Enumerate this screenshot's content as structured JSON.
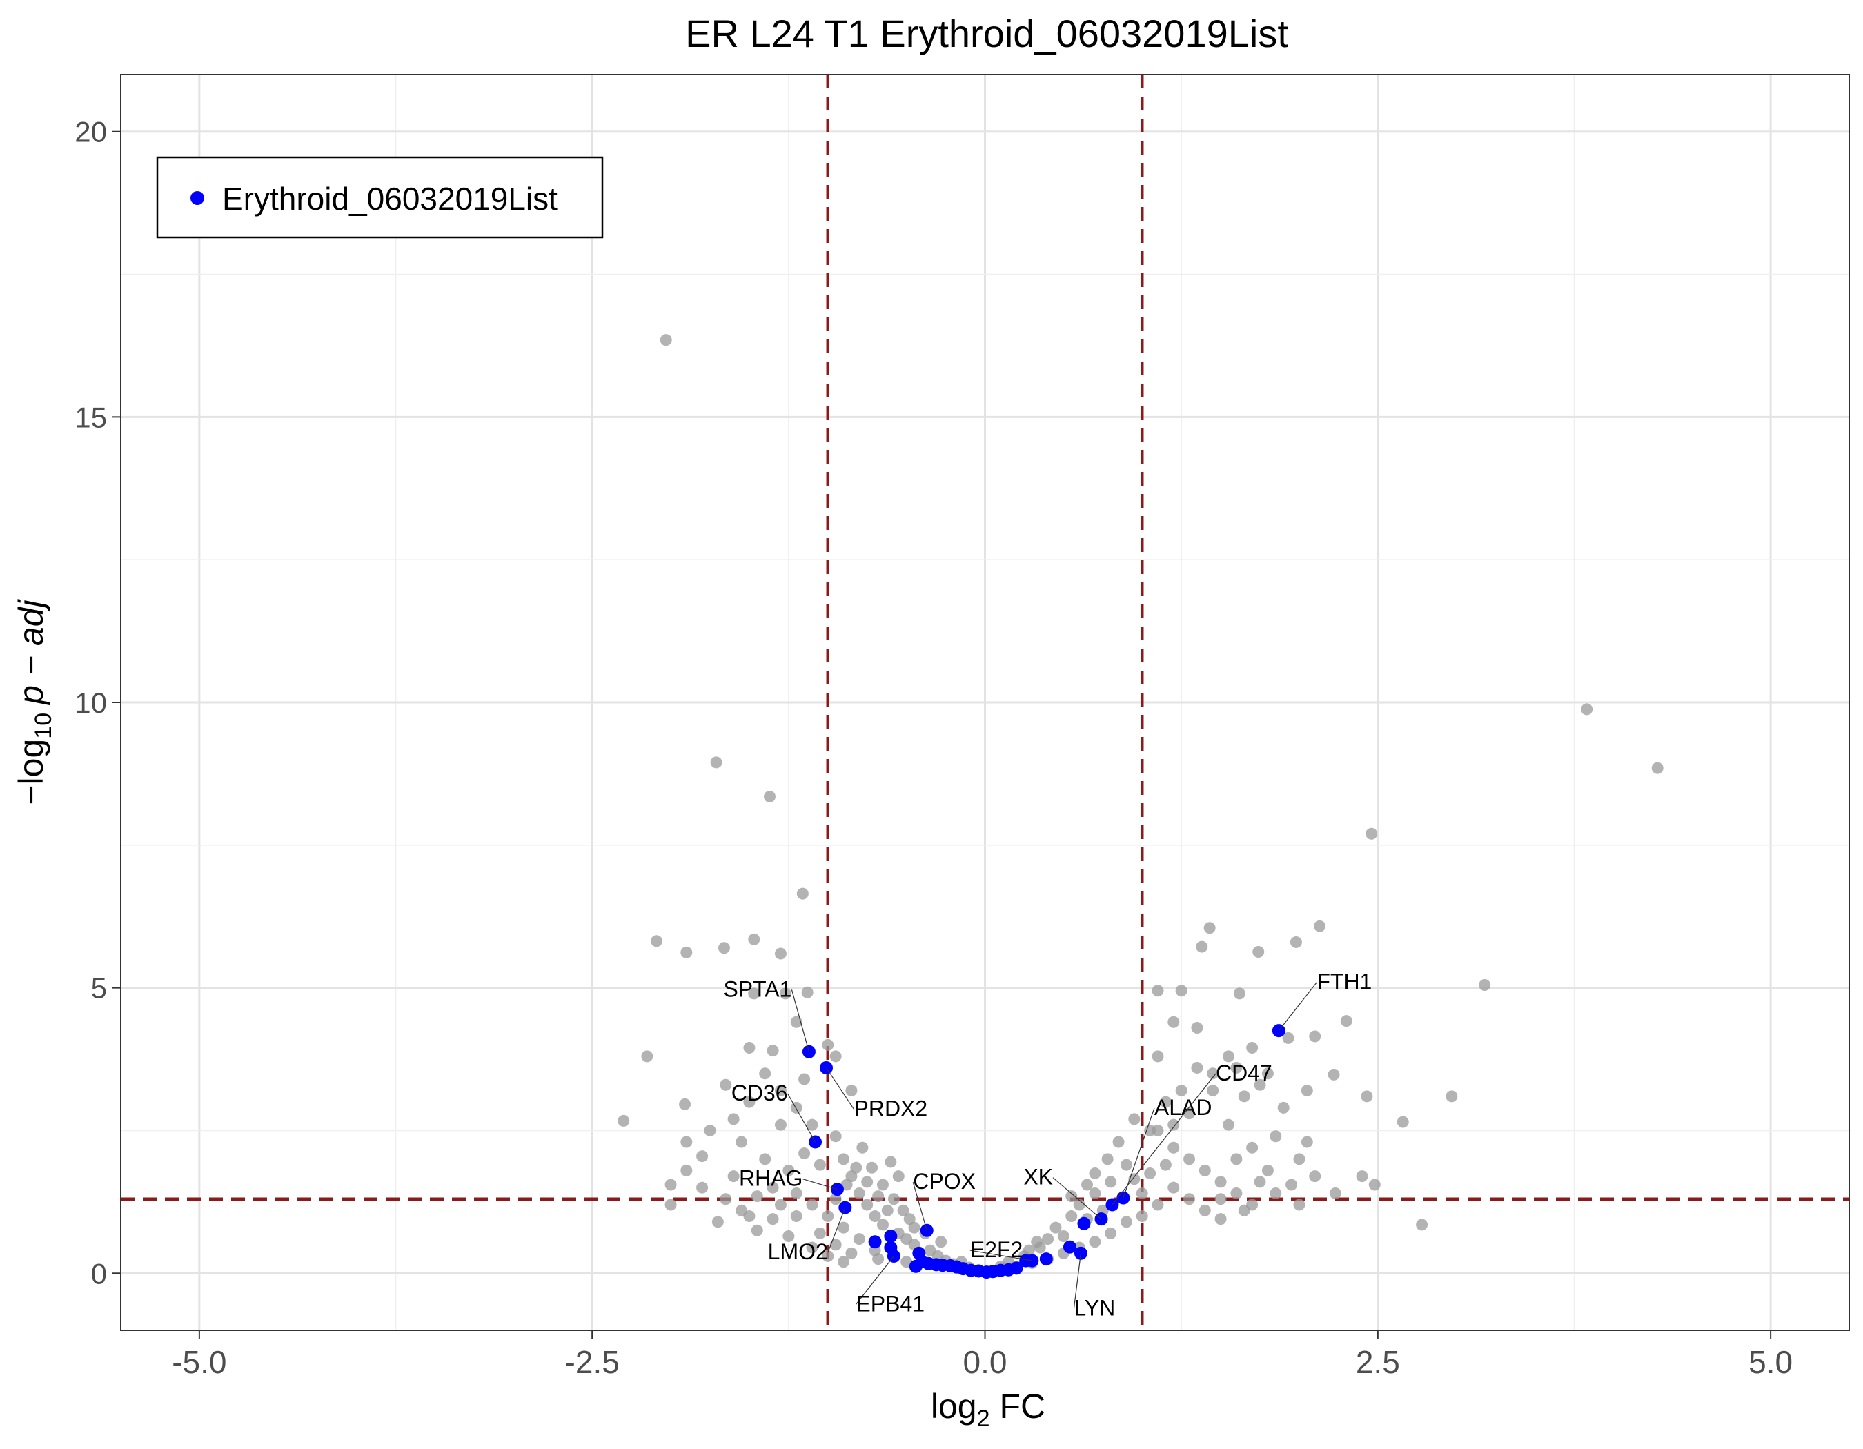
{
  "chart_data": {
    "type": "scatter",
    "title": "ER L24 T1 Erythroid_06032019List",
    "xlabel_base": "log",
    "xlabel_sub": "2",
    "xlabel_rest": " FC",
    "ylabel_pre": "−log",
    "ylabel_sub": "10",
    "ylabel_rest": "p − adj",
    "xlim": [
      -5.5,
      5.5
    ],
    "ylim": [
      -1.0,
      21.0
    ],
    "x_ticks": [
      -5.0,
      -2.5,
      0.0,
      2.5,
      5.0
    ],
    "x_tick_labels": [
      "-5.0",
      "-2.5",
      "0.0",
      "2.5",
      "5.0"
    ],
    "y_ticks": [
      0,
      5,
      10,
      15,
      20
    ],
    "y_tick_labels": [
      "0",
      "5",
      "10",
      "15",
      "20"
    ],
    "grid": true,
    "thresholds": {
      "vertical": [
        -1.0,
        1.0
      ],
      "horizontal": 1.3,
      "color": "#8B1A1A"
    },
    "legend": {
      "position": "top-left",
      "label": "Erythroid_06032019List",
      "color": "#0000ff"
    },
    "background_color": "#999999",
    "highlight_color": "#0000ff",
    "highlighted": [
      {
        "gene": "FTH1",
        "x": 1.87,
        "y": 4.25,
        "label": true
      },
      {
        "gene": "SPTA1",
        "x": -1.12,
        "y": 3.88,
        "label": true
      },
      {
        "gene": "PRDX2",
        "x": -1.01,
        "y": 3.6,
        "label": true
      },
      {
        "gene": "CD36",
        "x": -1.08,
        "y": 2.3,
        "label": true
      },
      {
        "gene": "RHAG",
        "x": -0.94,
        "y": 1.47,
        "label": true
      },
      {
        "gene": "LMO2",
        "x": -0.89,
        "y": 1.15,
        "label": true
      },
      {
        "gene": "CPOX",
        "x": -0.37,
        "y": 0.75,
        "label": true
      },
      {
        "gene": "EPB41",
        "x": -0.58,
        "y": 0.3,
        "label": true
      },
      {
        "gene": "E2F2",
        "x": 0.3,
        "y": 0.22,
        "label": true
      },
      {
        "gene": "XK",
        "x": 0.74,
        "y": 0.95,
        "label": true
      },
      {
        "gene": "LYN",
        "x": 0.61,
        "y": 0.35,
        "label": true
      },
      {
        "gene": "ALAD",
        "x": 0.88,
        "y": 1.32,
        "label": true
      },
      {
        "gene": "CD47",
        "x": 0.81,
        "y": 1.2,
        "label": true
      },
      {
        "gene": "",
        "x": 0.63,
        "y": 0.87,
        "label": false
      },
      {
        "gene": "",
        "x": 0.54,
        "y": 0.46,
        "label": false
      },
      {
        "gene": "",
        "x": 0.39,
        "y": 0.25,
        "label": false
      },
      {
        "gene": "",
        "x": 0.26,
        "y": 0.22,
        "label": false
      },
      {
        "gene": "",
        "x": 0.2,
        "y": 0.09,
        "label": false
      },
      {
        "gene": "",
        "x": 0.15,
        "y": 0.06,
        "label": false
      },
      {
        "gene": "",
        "x": 0.1,
        "y": 0.05,
        "label": false
      },
      {
        "gene": "",
        "x": 0.05,
        "y": 0.03,
        "label": false
      },
      {
        "gene": "",
        "x": 0.01,
        "y": 0.02,
        "label": false
      },
      {
        "gene": "",
        "x": -0.04,
        "y": 0.04,
        "label": false
      },
      {
        "gene": "",
        "x": -0.09,
        "y": 0.05,
        "label": false
      },
      {
        "gene": "",
        "x": -0.14,
        "y": 0.08,
        "label": false
      },
      {
        "gene": "",
        "x": -0.18,
        "y": 0.11,
        "label": false
      },
      {
        "gene": "",
        "x": -0.22,
        "y": 0.13,
        "label": false
      },
      {
        "gene": "",
        "x": -0.27,
        "y": 0.14,
        "label": false
      },
      {
        "gene": "",
        "x": -0.31,
        "y": 0.15,
        "label": false
      },
      {
        "gene": "",
        "x": -0.36,
        "y": 0.17,
        "label": false
      },
      {
        "gene": "",
        "x": -0.4,
        "y": 0.2,
        "label": false
      },
      {
        "gene": "",
        "x": -0.42,
        "y": 0.35,
        "label": false
      },
      {
        "gene": "",
        "x": -0.44,
        "y": 0.12,
        "label": false
      },
      {
        "gene": "",
        "x": -0.6,
        "y": 0.45,
        "label": false
      },
      {
        "gene": "",
        "x": -0.6,
        "y": 0.65,
        "label": false
      },
      {
        "gene": "",
        "x": -0.7,
        "y": 0.55,
        "label": false
      }
    ],
    "background_points": [
      {
        "x": -2.03,
        "y": 16.35
      },
      {
        "x": -1.71,
        "y": 8.95
      },
      {
        "x": -1.37,
        "y": 8.35
      },
      {
        "x": 3.83,
        "y": 9.88
      },
      {
        "x": 4.28,
        "y": 8.85
      },
      {
        "x": 2.46,
        "y": 7.7
      },
      {
        "x": -1.16,
        "y": 6.65
      },
      {
        "x": -2.09,
        "y": 5.82
      },
      {
        "x": -1.9,
        "y": 5.62
      },
      {
        "x": -1.66,
        "y": 5.7
      },
      {
        "x": -1.47,
        "y": 5.85
      },
      {
        "x": -1.3,
        "y": 5.6
      },
      {
        "x": 1.43,
        "y": 6.05
      },
      {
        "x": 2.13,
        "y": 6.08
      },
      {
        "x": 1.38,
        "y": 5.72
      },
      {
        "x": 1.74,
        "y": 5.63
      },
      {
        "x": 1.98,
        "y": 5.8
      },
      {
        "x": 3.18,
        "y": 5.05
      },
      {
        "x": 1.1,
        "y": 4.95
      },
      {
        "x": 1.25,
        "y": 4.95
      },
      {
        "x": 1.62,
        "y": 4.9
      },
      {
        "x": 2.3,
        "y": 4.42
      },
      {
        "x": 2.1,
        "y": 4.15
      },
      {
        "x": -1.27,
        "y": 4.9
      },
      {
        "x": -1.47,
        "y": 4.9
      },
      {
        "x": -1.13,
        "y": 4.92
      },
      {
        "x": -2.3,
        "y": 2.67
      },
      {
        "x": -2.15,
        "y": 3.8
      },
      {
        "x": -1.91,
        "y": 2.96
      },
      {
        "x": 2.43,
        "y": 3.1
      },
      {
        "x": 2.97,
        "y": 3.1
      },
      {
        "x": 2.66,
        "y": 2.65
      },
      {
        "x": 2.48,
        "y": 1.55
      },
      {
        "x": 2.78,
        "y": 0.85
      },
      {
        "x": 2.23,
        "y": 1.4
      },
      {
        "x": 2.4,
        "y": 1.7
      },
      {
        "x": 1.93,
        "y": 4.12
      },
      {
        "x": 1.8,
        "y": 3.5
      },
      {
        "x": 1.7,
        "y": 3.95
      },
      {
        "x": 1.55,
        "y": 3.8
      },
      {
        "x": 1.45,
        "y": 3.2
      },
      {
        "x": 1.35,
        "y": 4.3
      },
      {
        "x": 1.2,
        "y": 4.4
      },
      {
        "x": 2.22,
        "y": 3.48
      },
      {
        "x": 2.05,
        "y": 3.2
      },
      {
        "x": -1.35,
        "y": 3.9
      },
      {
        "x": -1.5,
        "y": 3.95
      },
      {
        "x": -1.65,
        "y": 3.3
      },
      {
        "x": -1.9,
        "y": 2.3
      },
      {
        "x": -1.2,
        "y": 4.4
      },
      {
        "x": -0.95,
        "y": 3.8
      },
      {
        "x": -0.85,
        "y": 3.2
      },
      {
        "x": -1.0,
        "y": 4.0
      },
      {
        "x": 2.0,
        "y": 2.0
      },
      {
        "x": 2.1,
        "y": 1.7
      },
      {
        "x": 1.95,
        "y": 1.55
      },
      {
        "x": 1.85,
        "y": 1.4
      },
      {
        "x": 1.65,
        "y": 1.1
      },
      {
        "x": 1.5,
        "y": 0.95
      },
      {
        "x": -1.9,
        "y": 1.8
      },
      {
        "x": -2.0,
        "y": 1.55
      },
      {
        "x": -1.8,
        "y": 1.5
      },
      {
        "x": -1.65,
        "y": 1.3
      },
      {
        "x": -1.5,
        "y": 1.0
      },
      {
        "x": -1.45,
        "y": 0.75
      },
      {
        "x": -1.7,
        "y": 0.9
      },
      {
        "x": -1.55,
        "y": 2.3
      },
      {
        "x": -1.3,
        "y": 2.6
      },
      {
        "x": -1.4,
        "y": 2.0
      },
      {
        "x": -1.25,
        "y": 1.8
      },
      {
        "x": -1.15,
        "y": 2.1
      },
      {
        "x": -1.1,
        "y": 2.6
      },
      {
        "x": -1.05,
        "y": 1.9
      },
      {
        "x": -0.95,
        "y": 2.4
      },
      {
        "x": -0.9,
        "y": 2.0
      },
      {
        "x": -0.85,
        "y": 1.7
      },
      {
        "x": -0.8,
        "y": 1.4
      },
      {
        "x": -0.75,
        "y": 1.2
      },
      {
        "x": -0.7,
        "y": 1.0
      },
      {
        "x": -0.65,
        "y": 0.85
      },
      {
        "x": -0.55,
        "y": 0.7
      },
      {
        "x": -0.5,
        "y": 0.6
      },
      {
        "x": -0.45,
        "y": 0.5
      },
      {
        "x": -0.35,
        "y": 0.4
      },
      {
        "x": -0.3,
        "y": 0.3
      },
      {
        "x": -0.25,
        "y": 0.22
      },
      {
        "x": -0.2,
        "y": 0.16
      },
      {
        "x": -1.2,
        "y": 1.4
      },
      {
        "x": -1.1,
        "y": 1.2
      },
      {
        "x": -1.0,
        "y": 1.0
      },
      {
        "x": -0.9,
        "y": 0.8
      },
      {
        "x": -0.8,
        "y": 0.6
      },
      {
        "x": -0.7,
        "y": 0.4
      },
      {
        "x": -1.3,
        "y": 1.2
      },
      {
        "x": -1.35,
        "y": 1.5
      },
      {
        "x": -1.2,
        "y": 1.0
      },
      {
        "x": -1.05,
        "y": 0.7
      },
      {
        "x": -0.95,
        "y": 0.5
      },
      {
        "x": -0.85,
        "y": 0.35
      },
      {
        "x": -0.78,
        "y": 2.2
      },
      {
        "x": -0.72,
        "y": 1.85
      },
      {
        "x": -0.65,
        "y": 1.55
      },
      {
        "x": -0.58,
        "y": 1.3
      },
      {
        "x": -0.52,
        "y": 1.1
      },
      {
        "x": -0.48,
        "y": 0.95
      },
      {
        "x": 1.1,
        "y": 2.5
      },
      {
        "x": 1.2,
        "y": 2.2
      },
      {
        "x": 1.3,
        "y": 2.0
      },
      {
        "x": 1.4,
        "y": 1.8
      },
      {
        "x": 1.5,
        "y": 1.6
      },
      {
        "x": 1.6,
        "y": 1.4
      },
      {
        "x": 1.7,
        "y": 1.2
      },
      {
        "x": 1.2,
        "y": 1.5
      },
      {
        "x": 1.3,
        "y": 1.3
      },
      {
        "x": 1.4,
        "y": 1.1
      },
      {
        "x": 1.5,
        "y": 1.3
      },
      {
        "x": 1.1,
        "y": 1.2
      },
      {
        "x": 1.0,
        "y": 1.0
      },
      {
        "x": 0.9,
        "y": 0.9
      },
      {
        "x": 0.8,
        "y": 0.7
      },
      {
        "x": 0.7,
        "y": 0.55
      },
      {
        "x": 0.6,
        "y": 0.45
      },
      {
        "x": 0.5,
        "y": 0.35
      },
      {
        "x": 0.4,
        "y": 0.25
      },
      {
        "x": 0.3,
        "y": 0.18
      },
      {
        "x": 0.2,
        "y": 0.12
      },
      {
        "x": 1.15,
        "y": 3.0
      },
      {
        "x": 1.25,
        "y": 3.2
      },
      {
        "x": 1.35,
        "y": 3.6
      },
      {
        "x": 1.45,
        "y": 3.5
      },
      {
        "x": 1.6,
        "y": 3.6
      },
      {
        "x": 1.75,
        "y": 3.3
      },
      {
        "x": 1.1,
        "y": 3.8
      },
      {
        "x": 1.9,
        "y": 2.9
      },
      {
        "x": 1.85,
        "y": 2.4
      },
      {
        "x": 1.7,
        "y": 2.2
      },
      {
        "x": 1.6,
        "y": 2.0
      },
      {
        "x": 0.85,
        "y": 2.3
      },
      {
        "x": 0.9,
        "y": 1.9
      },
      {
        "x": 0.8,
        "y": 1.6
      },
      {
        "x": 0.7,
        "y": 1.4
      },
      {
        "x": 0.6,
        "y": 1.2
      },
      {
        "x": 0.55,
        "y": 1.0
      },
      {
        "x": 0.45,
        "y": 0.8
      },
      {
        "x": 0.4,
        "y": 0.6
      },
      {
        "x": 0.35,
        "y": 0.45
      },
      {
        "x": 1.0,
        "y": 1.4
      },
      {
        "x": 0.95,
        "y": 1.65
      },
      {
        "x": 1.05,
        "y": 1.75
      },
      {
        "x": 1.15,
        "y": 1.9
      },
      {
        "x": 0.75,
        "y": 1.1
      },
      {
        "x": 0.65,
        "y": 0.95
      },
      {
        "x": 0.5,
        "y": 0.65
      },
      {
        "x": -1.6,
        "y": 1.7
      },
      {
        "x": -1.45,
        "y": 1.35
      },
      {
        "x": -1.55,
        "y": 1.1
      },
      {
        "x": -1.35,
        "y": 0.95
      },
      {
        "x": -1.25,
        "y": 0.65
      },
      {
        "x": -1.1,
        "y": 0.45
      },
      {
        "x": -1.0,
        "y": 0.3
      },
      {
        "x": -0.9,
        "y": 0.2
      },
      {
        "x": -1.4,
        "y": 3.5
      },
      {
        "x": -1.3,
        "y": 3.2
      },
      {
        "x": -1.2,
        "y": 2.9
      },
      {
        "x": -1.15,
        "y": 3.4
      },
      {
        "x": -1.5,
        "y": 3.0
      },
      {
        "x": -1.6,
        "y": 2.7
      },
      {
        "x": -1.75,
        "y": 2.5
      },
      {
        "x": 2.0,
        "y": 1.2
      },
      {
        "x": 1.8,
        "y": 1.8
      },
      {
        "x": 1.75,
        "y": 1.6
      },
      {
        "x": 2.05,
        "y": 2.3
      },
      {
        "x": 0.95,
        "y": 2.7
      },
      {
        "x": 1.05,
        "y": 2.5
      },
      {
        "x": -0.6,
        "y": 1.95
      },
      {
        "x": -0.55,
        "y": 1.7
      },
      {
        "x": -0.75,
        "y": 1.6
      },
      {
        "x": -0.68,
        "y": 0.25
      },
      {
        "x": -0.5,
        "y": 0.2
      },
      {
        "x": 0.25,
        "y": 0.3
      },
      {
        "x": 0.15,
        "y": 0.2
      },
      {
        "x": 0.1,
        "y": 0.12
      },
      {
        "x": -0.1,
        "y": 0.1
      },
      {
        "x": -0.15,
        "y": 0.2
      },
      {
        "x": 0.33,
        "y": 0.55
      },
      {
        "x": 0.28,
        "y": 0.4
      },
      {
        "x": -0.28,
        "y": 0.55
      },
      {
        "x": -0.38,
        "y": 0.7
      },
      {
        "x": -1.8,
        "y": 2.05
      },
      {
        "x": -2.0,
        "y": 1.2
      },
      {
        "x": 1.55,
        "y": 2.6
      },
      {
        "x": 1.65,
        "y": 3.1
      },
      {
        "x": 1.3,
        "y": 2.8
      },
      {
        "x": 1.2,
        "y": 2.6
      },
      {
        "x": -0.95,
        "y": 1.3
      },
      {
        "x": -0.88,
        "y": 1.55
      },
      {
        "x": -0.82,
        "y": 1.85
      },
      {
        "x": -0.68,
        "y": 1.35
      },
      {
        "x": -0.62,
        "y": 1.1
      },
      {
        "x": -0.45,
        "y": 0.8
      },
      {
        "x": 0.7,
        "y": 1.75
      },
      {
        "x": 0.78,
        "y": 2.0
      },
      {
        "x": 0.65,
        "y": 1.55
      },
      {
        "x": 0.55,
        "y": 1.35
      }
    ]
  }
}
